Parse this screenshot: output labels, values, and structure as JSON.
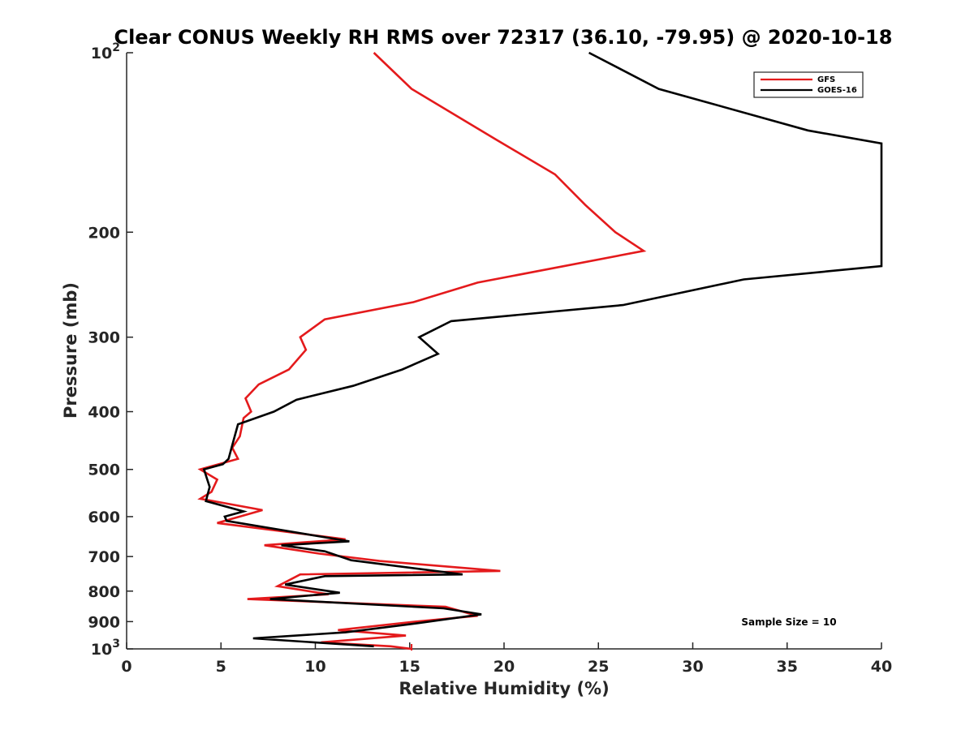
{
  "chart_data": {
    "type": "line",
    "title": "Clear CONUS Weekly RH RMS over 72317 (36.10, -79.95) @ 2020-10-18",
    "xlabel": "Relative Humidity (%)",
    "ylabel": "Pressure (mb)",
    "xlim": [
      0,
      40
    ],
    "ylim": [
      100,
      1000
    ],
    "y_scale": "log",
    "y_reversed": true,
    "x_ticks": [
      0,
      5,
      10,
      15,
      20,
      25,
      30,
      35,
      40
    ],
    "x_tick_labels": [
      "0",
      "5",
      "10",
      "15",
      "20",
      "25",
      "30",
      "35",
      "40"
    ],
    "y_ticks": [
      100,
      200,
      300,
      400,
      500,
      600,
      700,
      800,
      900,
      1000
    ],
    "y_tick_labels": [
      {
        "base": "10",
        "exp": "2"
      },
      {
        "base": "200",
        "exp": ""
      },
      {
        "base": "300",
        "exp": ""
      },
      {
        "base": "400",
        "exp": ""
      },
      {
        "base": "500",
        "exp": ""
      },
      {
        "base": "600",
        "exp": ""
      },
      {
        "base": "700",
        "exp": ""
      },
      {
        "base": "800",
        "exp": ""
      },
      {
        "base": "900",
        "exp": ""
      },
      {
        "base": "10",
        "exp": "3"
      }
    ],
    "grid": false,
    "legend_position": "top-right",
    "annotation": "Sample Size = 10",
    "series": [
      {
        "name": "GFS",
        "color": "#e41a1c",
        "points": [
          [
            13.1,
            100
          ],
          [
            15.1,
            115
          ],
          [
            19.6,
            140
          ],
          [
            22.7,
            160
          ],
          [
            24.3,
            180
          ],
          [
            25.9,
            200
          ],
          [
            27.4,
            215
          ],
          [
            18.6,
            243
          ],
          [
            15.2,
            262
          ],
          [
            10.5,
            280
          ],
          [
            9.2,
            300
          ],
          [
            9.5,
            315
          ],
          [
            8.6,
            340
          ],
          [
            7.0,
            360
          ],
          [
            6.3,
            380
          ],
          [
            6.6,
            400
          ],
          [
            6.2,
            410
          ],
          [
            6.0,
            440
          ],
          [
            5.6,
            460
          ],
          [
            5.9,
            480
          ],
          [
            3.9,
            500
          ],
          [
            4.8,
            520
          ],
          [
            4.5,
            545
          ],
          [
            3.9,
            560
          ],
          [
            7.2,
            585
          ],
          [
            4.8,
            615
          ],
          [
            11.6,
            655
          ],
          [
            7.3,
            670
          ],
          [
            10.2,
            692
          ],
          [
            13.4,
            712
          ],
          [
            19.8,
            740
          ],
          [
            9.2,
            750
          ],
          [
            8.0,
            785
          ],
          [
            10.7,
            810
          ],
          [
            6.4,
            825
          ],
          [
            16.9,
            850
          ],
          [
            18.6,
            880
          ],
          [
            15.3,
            900
          ],
          [
            11.2,
            930
          ],
          [
            14.8,
            950
          ],
          [
            10.3,
            975
          ],
          [
            14.0,
            990
          ],
          [
            15.1,
            1000
          ]
        ]
      },
      {
        "name": "GOES-16",
        "color": "#000000",
        "points": [
          [
            24.5,
            100
          ],
          [
            28.2,
            115
          ],
          [
            36.1,
            135
          ],
          [
            40.0,
            142
          ],
          [
            40.0,
            228
          ],
          [
            32.7,
            240
          ],
          [
            26.3,
            265
          ],
          [
            17.2,
            282
          ],
          [
            15.5,
            300
          ],
          [
            16.5,
            320
          ],
          [
            14.6,
            340
          ],
          [
            12.0,
            362
          ],
          [
            9.0,
            382
          ],
          [
            7.8,
            400
          ],
          [
            5.9,
            420
          ],
          [
            5.6,
            455
          ],
          [
            5.4,
            480
          ],
          [
            5.1,
            490
          ],
          [
            4.1,
            500
          ],
          [
            4.4,
            535
          ],
          [
            4.2,
            565
          ],
          [
            6.2,
            588
          ],
          [
            5.2,
            600
          ],
          [
            5.3,
            610
          ],
          [
            11.8,
            660
          ],
          [
            8.2,
            670
          ],
          [
            10.5,
            686
          ],
          [
            11.9,
            710
          ],
          [
            17.8,
            750
          ],
          [
            10.5,
            755
          ],
          [
            8.4,
            780
          ],
          [
            11.3,
            805
          ],
          [
            7.6,
            825
          ],
          [
            16.8,
            855
          ],
          [
            18.8,
            875
          ],
          [
            15.5,
            905
          ],
          [
            11.6,
            938
          ],
          [
            6.7,
            960
          ],
          [
            13.1,
            990
          ]
        ]
      }
    ]
  }
}
